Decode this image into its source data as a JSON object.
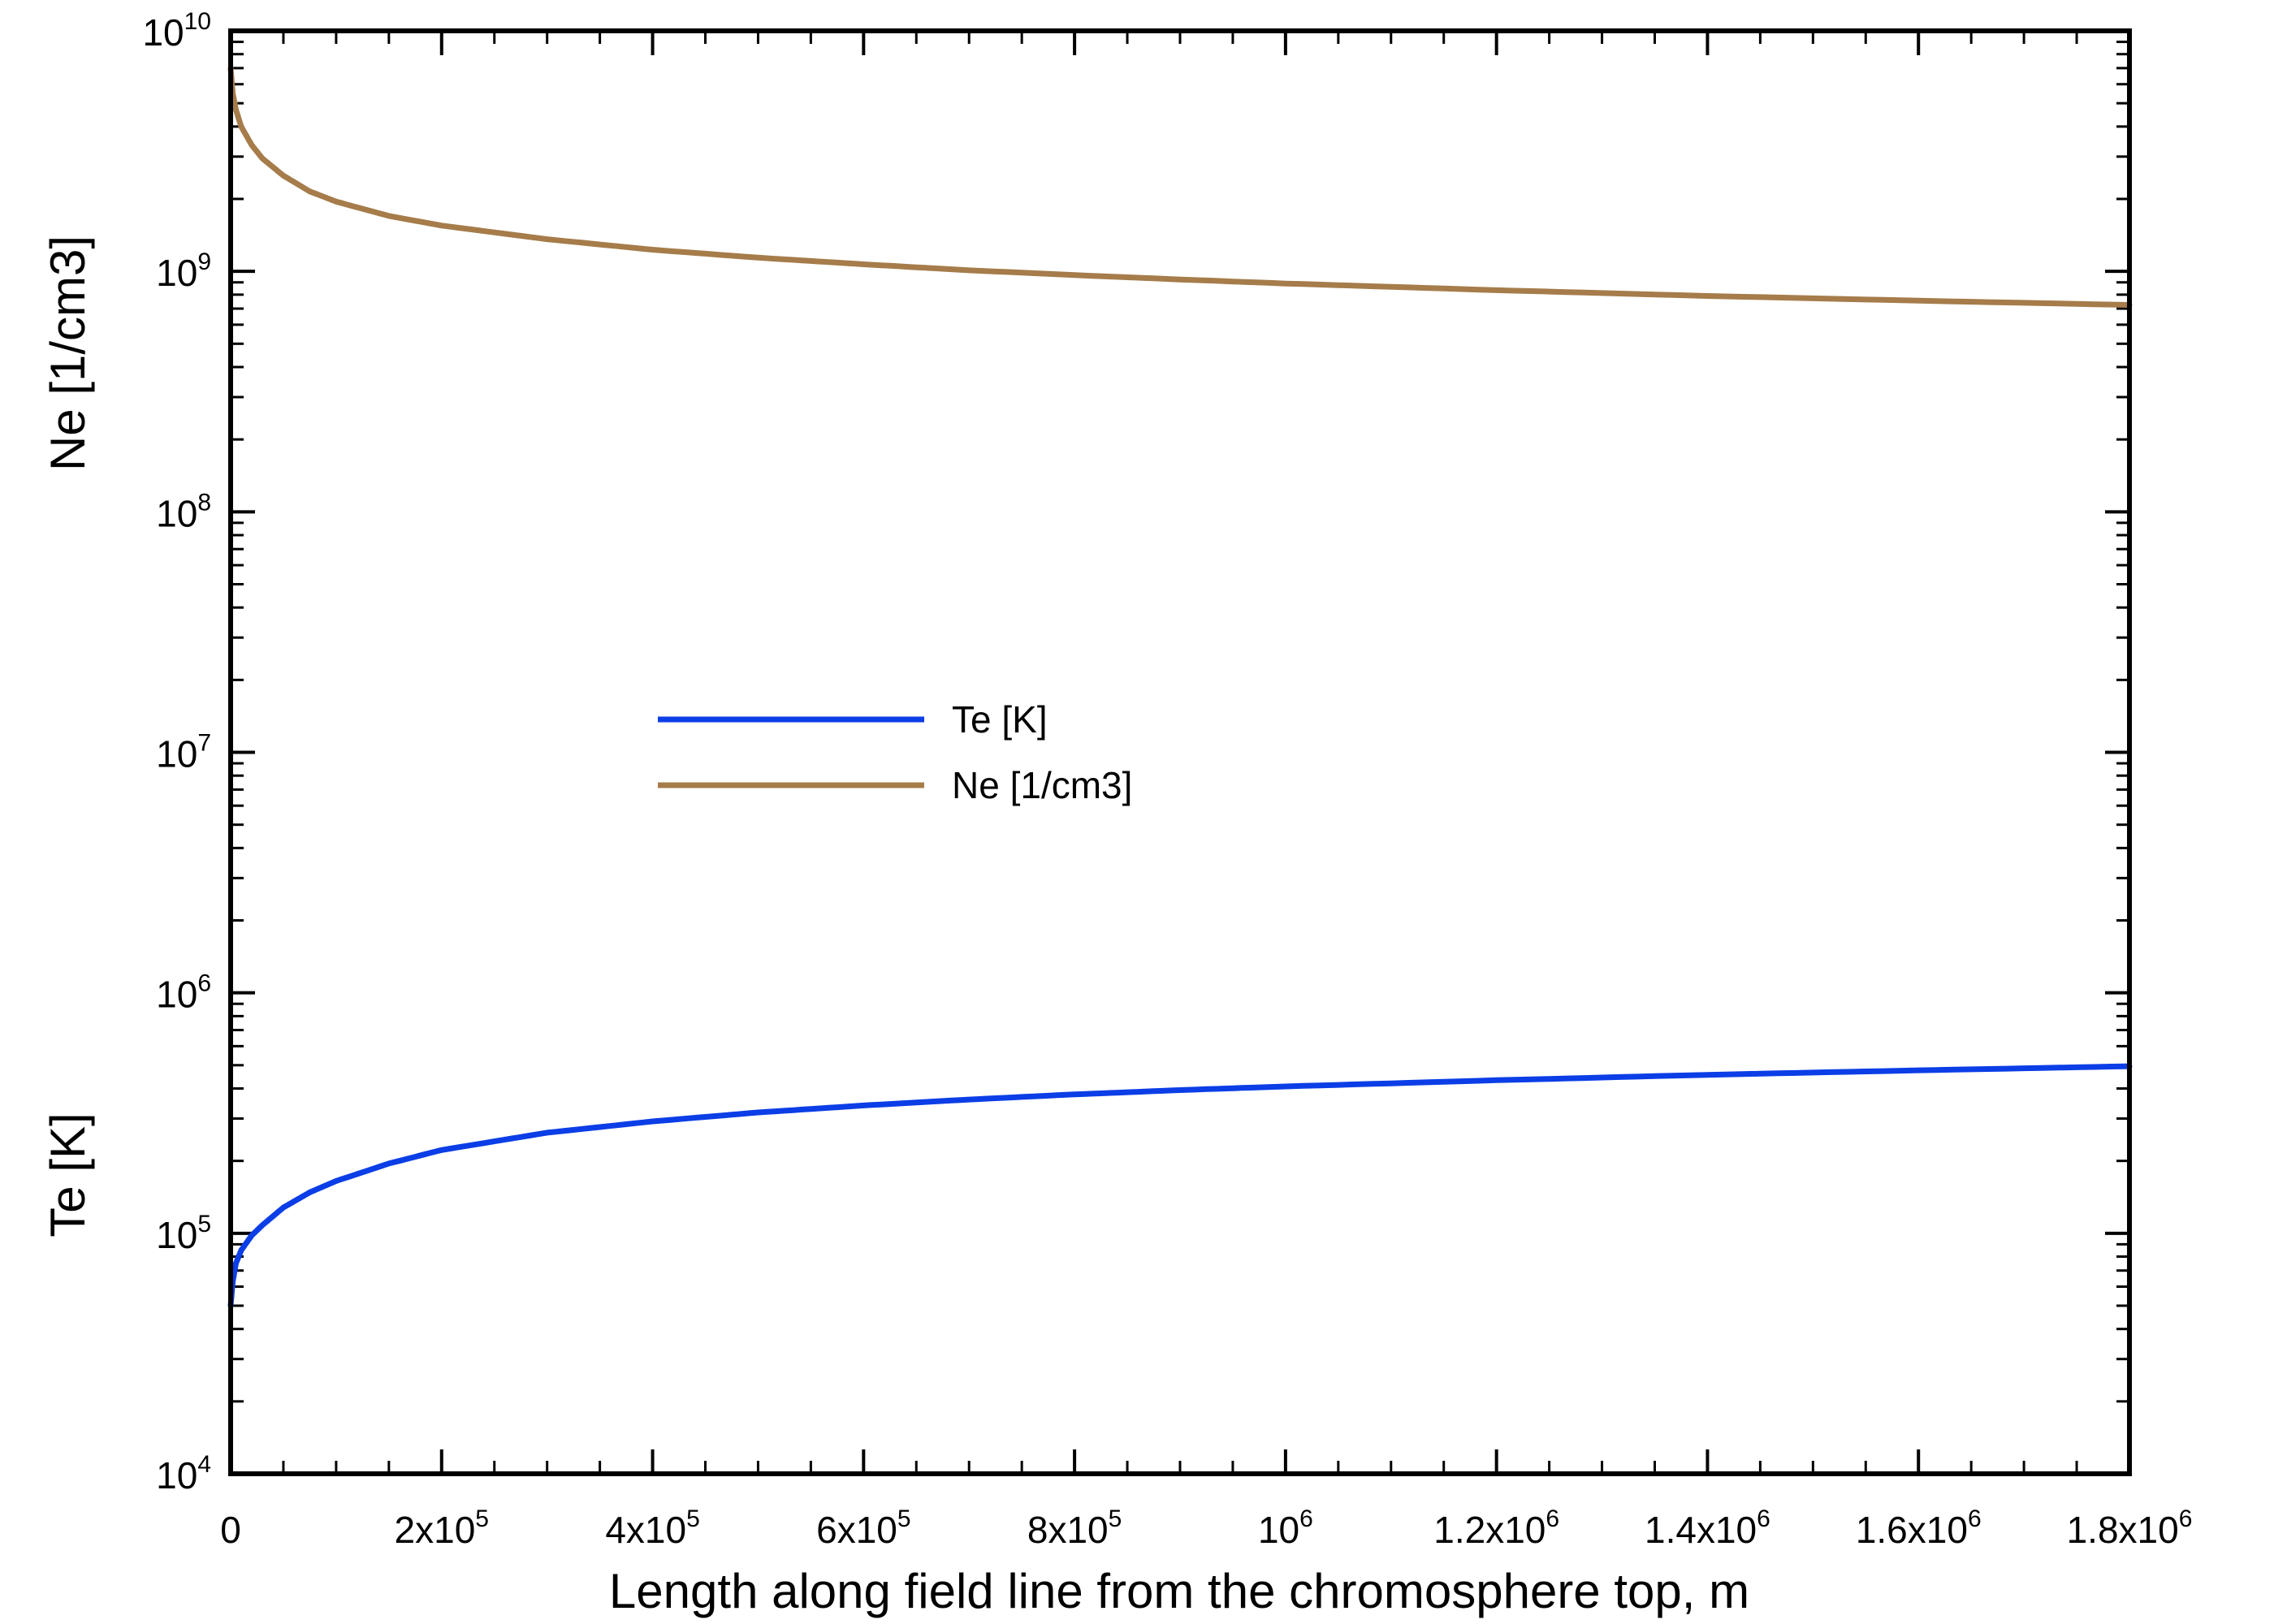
{
  "chart_data": {
    "type": "line",
    "xlabel": "Length along field line from the chromosphere top, m",
    "ylabels": [
      "Ne [1/cm3]",
      "Te [K]"
    ],
    "xlim": [
      0,
      1800000
    ],
    "ylim": [
      10000,
      10000000000
    ],
    "yscale": "log",
    "grid": false,
    "legend_position": "center-left",
    "x_ticks": [
      {
        "value": 0,
        "base": "0",
        "exp": ""
      },
      {
        "value": 200000,
        "base": "2x10",
        "exp": "5"
      },
      {
        "value": 400000,
        "base": "4x10",
        "exp": "5"
      },
      {
        "value": 600000,
        "base": "6x10",
        "exp": "5"
      },
      {
        "value": 800000,
        "base": "8x10",
        "exp": "5"
      },
      {
        "value": 1000000,
        "base": "10",
        "exp": "6"
      },
      {
        "value": 1200000,
        "base": "1.2x10",
        "exp": "6"
      },
      {
        "value": 1400000,
        "base": "1.4x10",
        "exp": "6"
      },
      {
        "value": 1600000,
        "base": "1.6x10",
        "exp": "6"
      },
      {
        "value": 1800000,
        "base": "1.8x10",
        "exp": "6"
      }
    ],
    "y_ticks": [
      {
        "value": 10000,
        "base": "10",
        "exp": "4"
      },
      {
        "value": 100000,
        "base": "10",
        "exp": "5"
      },
      {
        "value": 1000000,
        "base": "10",
        "exp": "6"
      },
      {
        "value": 10000000,
        "base": "10",
        "exp": "7"
      },
      {
        "value": 100000000,
        "base": "10",
        "exp": "8"
      },
      {
        "value": 1000000000,
        "base": "10",
        "exp": "9"
      },
      {
        "value": 10000000000,
        "base": "10",
        "exp": "10"
      }
    ],
    "series": [
      {
        "name": "Te [K]",
        "color": "#0b3ee6",
        "x": [
          0,
          2000,
          5000,
          10000,
          20000,
          30000,
          50000,
          75000,
          100000,
          150000,
          200000,
          300000,
          400000,
          500000,
          600000,
          700000,
          800000,
          900000,
          1000000,
          1200000,
          1400000,
          1600000,
          1800000
        ],
        "y": [
          50000,
          63000,
          75000,
          85000,
          98000,
          108000,
          128000,
          148000,
          165000,
          195000,
          222000,
          262000,
          292000,
          318000,
          340000,
          360000,
          378000,
          394000,
          408000,
          433000,
          456000,
          476000,
          495000
        ]
      },
      {
        "name": "Ne [1/cm3]",
        "color": "#a57c4a",
        "x": [
          0,
          2000,
          5000,
          10000,
          20000,
          30000,
          50000,
          75000,
          100000,
          150000,
          200000,
          300000,
          400000,
          500000,
          600000,
          700000,
          800000,
          900000,
          1000000,
          1200000,
          1400000,
          1600000,
          1800000
        ],
        "y": [
          7000000000,
          5500000000,
          4700000000,
          4000000000,
          3350000000,
          2950000000,
          2500000000,
          2150000000,
          1950000000,
          1700000000,
          1550000000,
          1360000000,
          1230000000,
          1140000000,
          1070000000,
          1010000000,
          965000000,
          925000000,
          890000000,
          835000000,
          790000000,
          755000000,
          725000000
        ]
      }
    ]
  }
}
